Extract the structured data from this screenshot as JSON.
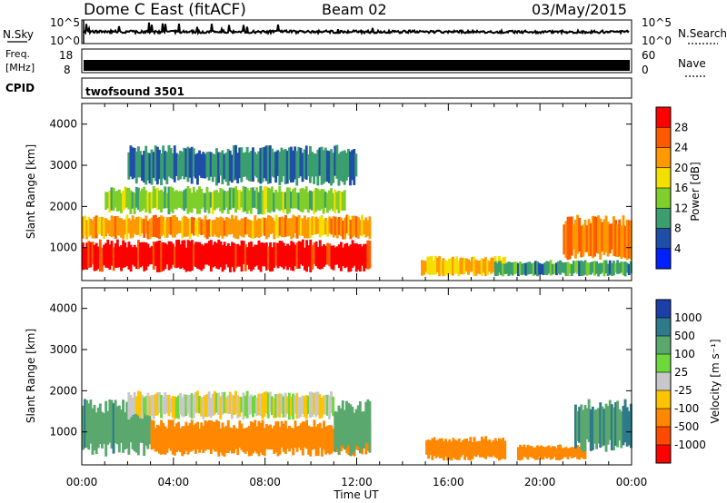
{
  "header": {
    "station": "Dome C East (fitACF)",
    "beam": "Beam 02",
    "date": "03/May/2015"
  },
  "meta_panels": {
    "nsky_label": "N.Sky",
    "nsky_ticks": [
      "10^5",
      "10^0"
    ],
    "nsearch_label": "N.Search",
    "nsearch_ticks": [
      "10^5",
      "10^0"
    ],
    "freq_label": "Freq.",
    "freq_unit": "[MHz]",
    "freq_ticks": [
      "18",
      "8"
    ],
    "nave_label": "Nave",
    "nave_ticks": [
      "60",
      "0"
    ],
    "cpid_label": "CPID",
    "cpid_value": "twofsound 3501"
  },
  "axes": {
    "xlabel": "Time UT",
    "ylabel": "Slant Range [km]",
    "x_ticks": [
      "00:00",
      "04:00",
      "08:00",
      "12:00",
      "16:00",
      "20:00",
      "00:00"
    ],
    "y_ticks": [
      "1000",
      "2000",
      "3000",
      "4000"
    ]
  },
  "power_colorbar": {
    "label": "Power [dB]",
    "ticks": [
      "28",
      "24",
      "20",
      "16",
      "12",
      "8",
      "4"
    ],
    "colors": [
      "#ff0000",
      "#ff5a00",
      "#ff9900",
      "#f4e000",
      "#7fce2a",
      "#3a9e6e",
      "#1f4ea8",
      "#0020ff"
    ]
  },
  "velocity_colorbar": {
    "label": "Velocity [m s⁻¹]",
    "ticks": [
      "1000",
      "500",
      "100",
      "25",
      "-25",
      "-100",
      "-500",
      "-1000"
    ],
    "colors": [
      "#1c3ea8",
      "#2f7a8a",
      "#5aa86e",
      "#6ed83a",
      "#c8c8c8",
      "#ffc400",
      "#ff8800",
      "#ff4a00",
      "#ff0000"
    ]
  },
  "chart_data": [
    {
      "type": "heatmap",
      "title": "Power [dB]",
      "xlabel": "Time UT",
      "ylabel": "Slant Range [km]",
      "xlim_hours": [
        0,
        24
      ],
      "ylim_km": [
        200,
        4500
      ],
      "regions": [
        {
          "t_start": 0.0,
          "t_end": 12.6,
          "r_min": 400,
          "r_max": 1200,
          "power_db": 30
        },
        {
          "t_start": 0.0,
          "t_end": 12.6,
          "r_min": 1200,
          "r_max": 1800,
          "power_db": 22
        },
        {
          "t_start": 1.0,
          "t_end": 11.5,
          "r_min": 1800,
          "r_max": 2500,
          "power_db": 14
        },
        {
          "t_start": 2.0,
          "t_end": 12.0,
          "r_min": 2500,
          "r_max": 3500,
          "power_db": 8
        },
        {
          "t_start": 14.8,
          "t_end": 18.5,
          "r_min": 300,
          "r_max": 800,
          "power_db": 20
        },
        {
          "t_start": 18.0,
          "t_end": 24.0,
          "r_min": 300,
          "r_max": 700,
          "power_db": 10
        },
        {
          "t_start": 21.0,
          "t_end": 24.0,
          "r_min": 700,
          "r_max": 1800,
          "power_db": 24
        }
      ]
    },
    {
      "type": "heatmap",
      "title": "Velocity [m s⁻¹]",
      "xlabel": "Time UT",
      "ylabel": "Slant Range [km]",
      "xlim_hours": [
        0,
        24
      ],
      "ylim_km": [
        200,
        4500
      ],
      "regions": [
        {
          "t_start": 0.0,
          "t_end": 3.0,
          "r_min": 400,
          "r_max": 1800,
          "velocity": 250
        },
        {
          "t_start": 3.0,
          "t_end": 12.6,
          "r_min": 400,
          "r_max": 1300,
          "velocity": -200
        },
        {
          "t_start": 2.0,
          "t_end": 11.0,
          "r_min": 1300,
          "r_max": 2000,
          "velocity": 0
        },
        {
          "t_start": 11.0,
          "t_end": 12.6,
          "r_min": 400,
          "r_max": 1800,
          "velocity": 200
        },
        {
          "t_start": 15.0,
          "t_end": 18.5,
          "r_min": 300,
          "r_max": 900,
          "velocity": -200
        },
        {
          "t_start": 19.0,
          "t_end": 22.0,
          "r_min": 300,
          "r_max": 700,
          "velocity": -200
        },
        {
          "t_start": 21.5,
          "t_end": 24.0,
          "r_min": 500,
          "r_max": 1800,
          "velocity": 300
        }
      ]
    }
  ]
}
